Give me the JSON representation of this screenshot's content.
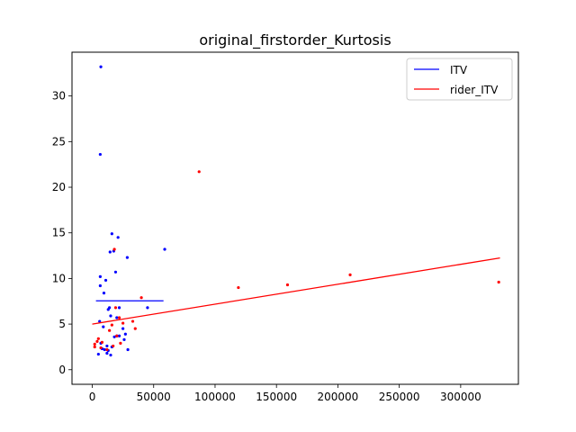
{
  "chart_data": {
    "type": "scatter",
    "title": "original_firstorder_Kurtosis",
    "xlabel": "",
    "ylabel": "",
    "xlim": [
      -16500,
      347000
    ],
    "ylim": [
      -1.6,
      34.8
    ],
    "xticks": [
      0,
      50000,
      100000,
      150000,
      200000,
      250000,
      300000
    ],
    "xtick_labels": [
      "0",
      "50000",
      "100000",
      "150000",
      "200000",
      "250000",
      "300000"
    ],
    "yticks": [
      0,
      5,
      10,
      15,
      20,
      25,
      30
    ],
    "ytick_labels": [
      "0",
      "5",
      "10",
      "15",
      "20",
      "25",
      "30"
    ],
    "grid": false,
    "legend": {
      "position": "top-right",
      "entries": [
        "ITV",
        "rider_ITV"
      ]
    },
    "series": [
      {
        "name": "ITV",
        "color": "#0000ff",
        "points": [
          [
            7000,
            33.2
          ],
          [
            6500,
            23.6
          ],
          [
            16000,
            14.9
          ],
          [
            21000,
            14.5
          ],
          [
            14500,
            12.9
          ],
          [
            17500,
            13.0
          ],
          [
            59000,
            13.2
          ],
          [
            28500,
            12.3
          ],
          [
            19000,
            10.7
          ],
          [
            6500,
            10.2
          ],
          [
            6500,
            9.2
          ],
          [
            11000,
            9.8
          ],
          [
            9500,
            8.4
          ],
          [
            45000,
            6.8
          ],
          [
            14000,
            6.8
          ],
          [
            13000,
            6.6
          ],
          [
            22000,
            6.8
          ],
          [
            15000,
            5.9
          ],
          [
            20000,
            5.7
          ],
          [
            6000,
            5.3
          ],
          [
            9000,
            4.7
          ],
          [
            25000,
            4.5
          ],
          [
            27000,
            3.9
          ],
          [
            22000,
            3.7
          ],
          [
            18000,
            3.6
          ],
          [
            20000,
            3.7
          ],
          [
            26000,
            3.3
          ],
          [
            7000,
            2.9
          ],
          [
            12000,
            2.6
          ],
          [
            16000,
            2.5
          ],
          [
            8000,
            2.3
          ],
          [
            10000,
            2.2
          ],
          [
            13000,
            2.1
          ],
          [
            29000,
            2.2
          ],
          [
            12000,
            1.8
          ],
          [
            15000,
            1.6
          ],
          [
            5000,
            1.7
          ]
        ],
        "fit_line": {
          "x": [
            3000,
            58000
          ],
          "y": [
            7.55,
            7.55
          ]
        }
      },
      {
        "name": "rider_ITV",
        "color": "#ff0000",
        "points": [
          [
            87000,
            21.7
          ],
          [
            18000,
            13.2
          ],
          [
            210000,
            10.4
          ],
          [
            159000,
            9.3
          ],
          [
            119000,
            9.0
          ],
          [
            331000,
            9.6
          ],
          [
            40000,
            7.9
          ],
          [
            19000,
            6.8
          ],
          [
            22000,
            5.7
          ],
          [
            33000,
            5.3
          ],
          [
            25000,
            5.1
          ],
          [
            16000,
            4.9
          ],
          [
            35000,
            4.5
          ],
          [
            14000,
            4.3
          ],
          [
            20000,
            3.7
          ],
          [
            5000,
            3.4
          ],
          [
            4000,
            3.1
          ],
          [
            8000,
            3.0
          ],
          [
            2000,
            2.8
          ],
          [
            23000,
            2.9
          ],
          [
            17000,
            2.6
          ],
          [
            2000,
            2.5
          ],
          [
            7000,
            2.4
          ],
          [
            12000,
            2.2
          ]
        ],
        "fit_line": {
          "x": [
            0,
            332000
          ],
          "y": [
            5.0,
            12.25
          ]
        }
      }
    ]
  }
}
